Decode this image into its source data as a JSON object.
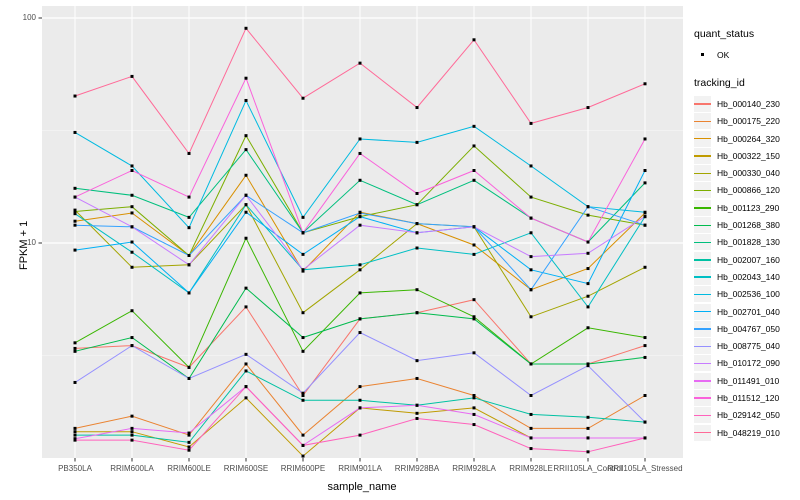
{
  "style": {
    "panel_bg": "#EBEBEB",
    "grid_major_color": "#FFFFFF",
    "grid_minor_color": "#F5F5F5",
    "tick_mark_color": "#333333",
    "point_color": "#000000",
    "legend_key_bg": "#F2F2F2"
  },
  "legend": {
    "quant_status_title": "quant_status",
    "quant_ok_label": "OK",
    "tracking_title": "tracking_id"
  },
  "chart_data": {
    "type": "line",
    "title": "",
    "xlabel": "sample_name",
    "ylabel": "FPKM + 1",
    "y_scale": "log10",
    "y_tick_values": [
      100,
      10
    ],
    "ylim": [
      1,
      110
    ],
    "grid": true,
    "legend_position": "right",
    "point_shape": "square",
    "categories": [
      "PB350LA",
      "RRIM600LA",
      "RRIM600LE",
      "RRIM600SE",
      "RRIM600PE",
      "RRIM901LA",
      "RRIM928BA",
      "RRIM928LA",
      "RRIM928LE",
      "RRII105LA_Control",
      "RRII105LA_Stressed"
    ],
    "series": [
      {
        "name": "Hb_000140_230",
        "color": "#F8766D",
        "values": [
          3.4,
          3.5,
          2.8,
          5.2,
          2.1,
          4.6,
          4.9,
          5.6,
          2.9,
          2.9,
          3.5
        ]
      },
      {
        "name": "Hb_000175_220",
        "color": "#EA8331",
        "values": [
          1.5,
          1.7,
          1.4,
          2.9,
          1.4,
          2.3,
          2.5,
          2.1,
          1.5,
          1.5,
          2.1
        ]
      },
      {
        "name": "Hb_000264_320",
        "color": "#D89000",
        "values": [
          12.5,
          13.6,
          8.8,
          20,
          7.5,
          13.7,
          12.2,
          9.8,
          6.2,
          7.7,
          13.6
        ]
      },
      {
        "name": "Hb_000322_150",
        "color": "#C09B00",
        "values": [
          1.45,
          1.45,
          1.24,
          2.05,
          1.13,
          1.85,
          1.75,
          1.85,
          1.36,
          1.36,
          1.36
        ]
      },
      {
        "name": "Hb_000330_040",
        "color": "#A3A500",
        "values": [
          14,
          7.8,
          8.0,
          14.8,
          4.9,
          7.6,
          12.2,
          11.8,
          4.7,
          5.8,
          7.8
        ]
      },
      {
        "name": "Hb_000866_120",
        "color": "#7CAE00",
        "values": [
          13.8,
          14.5,
          8.8,
          30,
          11.1,
          13.1,
          14.8,
          27,
          16,
          13.3,
          12.0
        ]
      },
      {
        "name": "Hb_001123_290",
        "color": "#39B600",
        "values": [
          3.6,
          5.0,
          2.8,
          10.5,
          3.3,
          6.0,
          6.2,
          4.7,
          2.9,
          4.2,
          3.8
        ]
      },
      {
        "name": "Hb_001268_380",
        "color": "#00BB4E",
        "values": [
          3.3,
          3.8,
          2.5,
          6.3,
          3.8,
          4.6,
          4.9,
          4.6,
          2.9,
          2.9,
          3.1
        ]
      },
      {
        "name": "Hb_001828_130",
        "color": "#00BF7D",
        "values": [
          17.5,
          16.3,
          13,
          26,
          11.1,
          19,
          14.8,
          19,
          12.9,
          10.1,
          18.5
        ]
      },
      {
        "name": "Hb_002007_160",
        "color": "#00C1A3",
        "values": [
          1.4,
          1.4,
          1.3,
          2.7,
          2.0,
          2.0,
          1.9,
          2.05,
          1.73,
          1.68,
          1.6
        ]
      },
      {
        "name": "Hb_002043_140",
        "color": "#00BFC4",
        "values": [
          13.5,
          9.1,
          6.0,
          14.8,
          7.6,
          8.0,
          9.5,
          8.9,
          11.1,
          5.2,
          13.1
        ]
      },
      {
        "name": "Hb_002536_100",
        "color": "#00BAE0",
        "values": [
          31,
          22,
          11.7,
          43,
          13,
          29,
          28,
          33,
          22,
          14.5,
          13.7
        ]
      },
      {
        "name": "Hb_002701_040",
        "color": "#00B0F6",
        "values": [
          9.3,
          10.1,
          6.0,
          13.7,
          8.9,
          13.1,
          11.1,
          11.8,
          7.6,
          6.6,
          21
        ]
      },
      {
        "name": "Hb_004767_050",
        "color": "#35A2FF",
        "values": [
          12,
          11.8,
          8.8,
          16.3,
          11.1,
          13.6,
          12.2,
          11.8,
          6.2,
          14.5,
          12.0
        ]
      },
      {
        "name": "Hb_008775_040",
        "color": "#9590FF",
        "values": [
          2.4,
          3.5,
          2.5,
          3.2,
          2.15,
          4.0,
          3.0,
          3.25,
          2.1,
          2.85,
          1.6
        ]
      },
      {
        "name": "Hb_010172_090",
        "color": "#C77CFF",
        "values": [
          16,
          11.8,
          8.0,
          16.3,
          7.6,
          12,
          11.1,
          11.8,
          8.7,
          9.0,
          13.1
        ]
      },
      {
        "name": "Hb_011491_010",
        "color": "#E76BF3",
        "values": [
          1.35,
          1.5,
          1.43,
          2.3,
          1.26,
          1.85,
          1.9,
          1.73,
          1.36,
          1.36,
          1.36
        ]
      },
      {
        "name": "Hb_011512_120",
        "color": "#FA62DB",
        "values": [
          16,
          21,
          16,
          54,
          11.1,
          25,
          16.6,
          21,
          12.9,
          10.1,
          29
        ]
      },
      {
        "name": "Hb_029142_050",
        "color": "#FF62BC",
        "values": [
          1.33,
          1.33,
          1.2,
          2.3,
          1.26,
          1.4,
          1.66,
          1.56,
          1.22,
          1.18,
          1.36
        ]
      },
      {
        "name": "Hb_048219_010",
        "color": "#FF6A98",
        "values": [
          45,
          55,
          25,
          90,
          44,
          63,
          40,
          80,
          34,
          40,
          51
        ]
      }
    ]
  }
}
